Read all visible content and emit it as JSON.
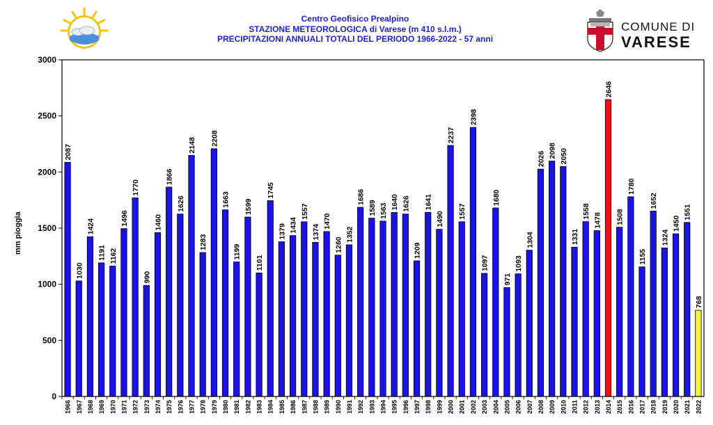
{
  "header": {
    "line1": "Centro Geofisico Prealpino",
    "line2": "STAZIONE METEOROLOGICA di Varese (m 410 s.l.m.)",
    "line3": "PRECIPITAZIONI ANNUALI TOTALI  DEL PERIODO 1966-2022 - 57 anni"
  },
  "logo_right": {
    "comune": "COMUNE DI",
    "city": "VARESE"
  },
  "chart_data": {
    "type": "bar",
    "ylabel": "mm pioggia",
    "xlabel": "",
    "ylim": [
      0,
      3000
    ],
    "yticks": [
      0,
      500,
      1000,
      1500,
      2000,
      2500,
      3000
    ],
    "categories": [
      "1966",
      "1967",
      "1968",
      "1969",
      "1970",
      "1971",
      "1972",
      "1973",
      "1974",
      "1975",
      "1976",
      "1977",
      "1978",
      "1979",
      "1980",
      "1981",
      "1982",
      "1983",
      "1984",
      "1985",
      "1986",
      "1987",
      "1988",
      "1989",
      "1990",
      "1991",
      "1992",
      "1993",
      "1994",
      "1995",
      "1996",
      "1997",
      "1998",
      "1999",
      "2000",
      "2001",
      "2002",
      "2003",
      "2004",
      "2005",
      "2006",
      "2007",
      "2008",
      "2009",
      "2010",
      "2011",
      "2012",
      "2013",
      "2014",
      "2015",
      "2016",
      "2017",
      "2018",
      "2019",
      "2020",
      "2021",
      "2022"
    ],
    "values": [
      2087,
      1030,
      1424,
      1191,
      1162,
      1496,
      1770,
      990,
      1460,
      1866,
      1626,
      2148,
      1283,
      2208,
      1663,
      1199,
      1599,
      1101,
      1745,
      1379,
      1434,
      1557,
      1374,
      1470,
      1260,
      1352,
      1686,
      1589,
      1563,
      1640,
      1626,
      1209,
      1641,
      1490,
      2237,
      1557,
      2398,
      1097,
      1680,
      971,
      1093,
      1304,
      2026,
      2098,
      2050,
      1331,
      1558,
      1478,
      2646,
      1508,
      1780,
      1155,
      1652,
      1324,
      1450,
      1551,
      768
    ],
    "colors": {
      "default": "#1a12e6",
      "max": "#ee1111",
      "current": "#f5f03a"
    },
    "highlight": {
      "2014": "max",
      "2022": "current"
    },
    "grid": false,
    "legend": "none"
  }
}
